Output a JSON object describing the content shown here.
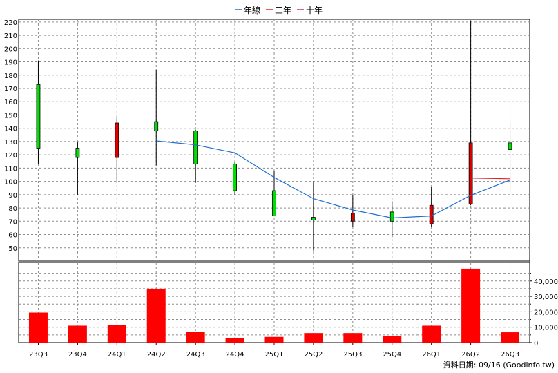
{
  "legend": [
    {
      "label": "年線",
      "color": "#1f6fd0"
    },
    {
      "label": "三年",
      "color": "#e0202a"
    },
    {
      "label": "十年",
      "color": "#c0306a"
    }
  ],
  "footer_text": "資料日期: 09/16  (Goodinfo.tw)",
  "chart_data": [
    {
      "type": "candlestick",
      "categories": [
        "23Q3",
        "23Q4",
        "24Q1",
        "24Q2",
        "24Q3",
        "24Q4",
        "25Q1",
        "25Q2",
        "25Q3",
        "25Q4",
        "26Q1",
        "26Q2",
        "26Q3"
      ],
      "ylim": [
        40,
        222
      ],
      "yticks": [
        50,
        60,
        70,
        80,
        90,
        100,
        110,
        120,
        130,
        140,
        150,
        160,
        170,
        180,
        190,
        200,
        210,
        220
      ],
      "grid": true,
      "up_color": "#00dd00",
      "down_color": "#dd0000",
      "candles": [
        {
          "open": 125,
          "high": 191,
          "low": 113,
          "close": 173,
          "direction": "up"
        },
        {
          "open": 118,
          "high": 130,
          "low": 90,
          "close": 125,
          "direction": "up"
        },
        {
          "open": 144,
          "high": 149,
          "low": 99,
          "close": 118,
          "direction": "down"
        },
        {
          "open": 138,
          "high": 184,
          "low": 112,
          "close": 145,
          "direction": "up"
        },
        {
          "open": 113,
          "high": 139,
          "low": 99,
          "close": 138,
          "direction": "up"
        },
        {
          "open": 93,
          "high": 115,
          "low": 90,
          "close": 113,
          "direction": "up"
        },
        {
          "open": 74,
          "high": 108,
          "low": 74,
          "close": 93,
          "direction": "up"
        },
        {
          "open": 71,
          "high": 100,
          "low": 48,
          "close": 73,
          "direction": "up"
        },
        {
          "open": 76,
          "high": 90,
          "low": 66,
          "close": 70,
          "direction": "down"
        },
        {
          "open": 70,
          "high": 85,
          "low": 58,
          "close": 77,
          "direction": "up"
        },
        {
          "open": 82,
          "high": 96,
          "low": 66,
          "close": 68,
          "direction": "down"
        },
        {
          "open": 129,
          "high": 221,
          "low": 82,
          "close": 83,
          "direction": "down"
        },
        {
          "open": 124,
          "high": 145,
          "low": 91,
          "close": 129,
          "direction": "up"
        }
      ],
      "series": [
        {
          "name": "年線",
          "color": "#1f6fd0",
          "values": [
            null,
            null,
            null,
            130.5,
            127.5,
            121.5,
            103,
            87,
            78.5,
            72.5,
            74,
            89.5,
            101
          ]
        },
        {
          "name": "三年",
          "color": "#e0202a",
          "values": [
            null,
            null,
            null,
            null,
            null,
            null,
            null,
            null,
            null,
            null,
            null,
            102.5,
            102
          ]
        },
        {
          "name": "十年",
          "color": "#c0306a",
          "values": [
            null,
            null,
            null,
            null,
            null,
            null,
            null,
            null,
            null,
            null,
            null,
            null,
            null
          ]
        }
      ]
    },
    {
      "type": "bar",
      "categories": [
        "23Q3",
        "23Q4",
        "24Q1",
        "24Q2",
        "24Q3",
        "24Q4",
        "25Q1",
        "25Q2",
        "25Q3",
        "25Q4",
        "26Q1",
        "26Q2",
        "26Q3"
      ],
      "values": [
        19500,
        11000,
        11500,
        35000,
        7000,
        3000,
        3700,
        6200,
        6200,
        4200,
        11000,
        48000,
        6700
      ],
      "bar_color": "#ff0000",
      "ylim": [
        0,
        52000
      ],
      "yticks": [
        0,
        10000,
        20000,
        30000,
        40000
      ],
      "ytick_labels": [
        "0",
        "10,000",
        "20,000",
        "30,000",
        "40,000"
      ],
      "grid": true
    }
  ]
}
